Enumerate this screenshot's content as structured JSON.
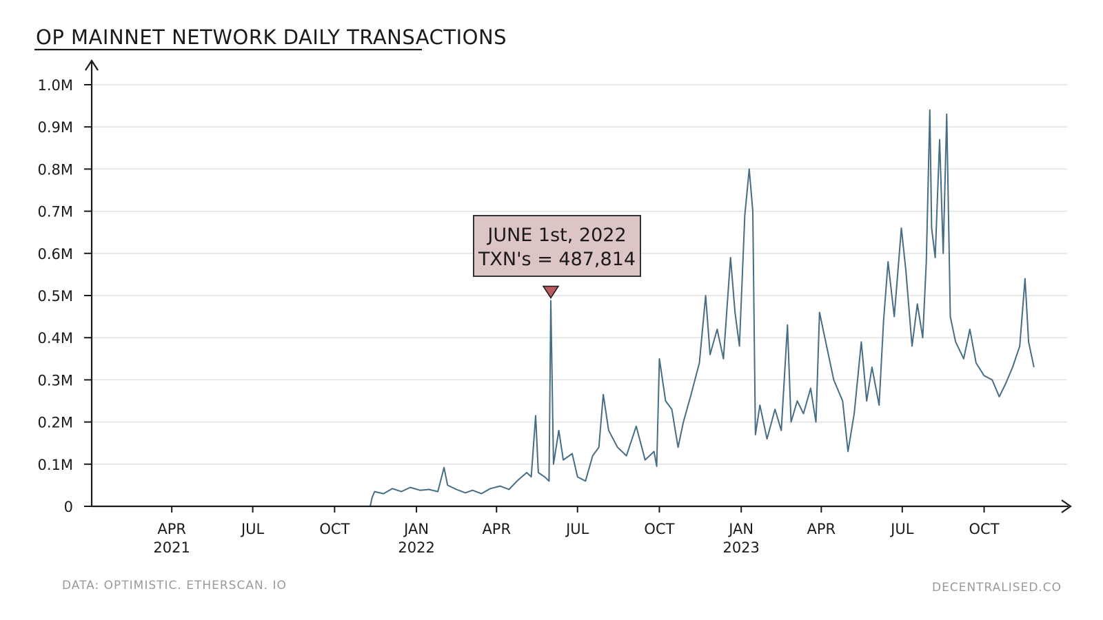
{
  "chart_data": {
    "type": "line",
    "title": "OP MAINNET NETWORK DAILY TRANSACTIONS",
    "xlabel": "",
    "ylabel": "",
    "ylim": [
      0,
      1000000
    ],
    "yticks": [
      {
        "value": 0,
        "label": "0"
      },
      {
        "value": 100000,
        "label": "0.1M"
      },
      {
        "value": 200000,
        "label": "0.2M"
      },
      {
        "value": 300000,
        "label": "0.3M"
      },
      {
        "value": 400000,
        "label": "0.4M"
      },
      {
        "value": 500000,
        "label": "0.5M"
      },
      {
        "value": 600000,
        "label": "0.6M"
      },
      {
        "value": 700000,
        "label": "0.7M"
      },
      {
        "value": 800000,
        "label": "0.8M"
      },
      {
        "value": 900000,
        "label": "0.9M"
      },
      {
        "value": 1000000,
        "label": "1.0M"
      }
    ],
    "xlim": [
      "2021-01-01",
      "2023-12-31"
    ],
    "xticks": [
      {
        "date": "2021-04-01",
        "label": "APR",
        "year": "2021"
      },
      {
        "date": "2021-07-01",
        "label": "JUL",
        "year": ""
      },
      {
        "date": "2021-10-01",
        "label": "OCT",
        "year": ""
      },
      {
        "date": "2022-01-01",
        "label": "JAN",
        "year": "2022"
      },
      {
        "date": "2022-04-01",
        "label": "APR",
        "year": ""
      },
      {
        "date": "2022-07-01",
        "label": "JUL",
        "year": ""
      },
      {
        "date": "2022-10-01",
        "label": "OCT",
        "year": ""
      },
      {
        "date": "2023-01-01",
        "label": "JAN",
        "year": "2023"
      },
      {
        "date": "2023-04-01",
        "label": "APR",
        "year": ""
      },
      {
        "date": "2023-07-01",
        "label": "JUL",
        "year": ""
      },
      {
        "date": "2023-10-01",
        "label": "OCT",
        "year": ""
      }
    ],
    "series": [
      {
        "name": "Daily transactions",
        "color": "#456d85",
        "points": [
          [
            "2021-01-01",
            0
          ],
          [
            "2021-11-10",
            0
          ],
          [
            "2021-11-12",
            20000
          ],
          [
            "2021-11-15",
            35000
          ],
          [
            "2021-11-25",
            30000
          ],
          [
            "2021-12-05",
            42000
          ],
          [
            "2021-12-15",
            35000
          ],
          [
            "2021-12-25",
            45000
          ],
          [
            "2022-01-05",
            38000
          ],
          [
            "2022-01-15",
            40000
          ],
          [
            "2022-01-25",
            35000
          ],
          [
            "2022-02-01",
            92000
          ],
          [
            "2022-02-05",
            50000
          ],
          [
            "2022-02-15",
            40000
          ],
          [
            "2022-02-25",
            32000
          ],
          [
            "2022-03-05",
            38000
          ],
          [
            "2022-03-15",
            30000
          ],
          [
            "2022-03-25",
            42000
          ],
          [
            "2022-04-05",
            48000
          ],
          [
            "2022-04-15",
            40000
          ],
          [
            "2022-04-25",
            62000
          ],
          [
            "2022-05-05",
            80000
          ],
          [
            "2022-05-10",
            70000
          ],
          [
            "2022-05-15",
            215000
          ],
          [
            "2022-05-18",
            80000
          ],
          [
            "2022-05-25",
            70000
          ],
          [
            "2022-05-30",
            60000
          ],
          [
            "2022-06-01",
            487814
          ],
          [
            "2022-06-04",
            100000
          ],
          [
            "2022-06-10",
            180000
          ],
          [
            "2022-06-15",
            110000
          ],
          [
            "2022-06-25",
            125000
          ],
          [
            "2022-07-01",
            70000
          ],
          [
            "2022-07-10",
            60000
          ],
          [
            "2022-07-18",
            120000
          ],
          [
            "2022-07-25",
            140000
          ],
          [
            "2022-07-30",
            265000
          ],
          [
            "2022-08-05",
            180000
          ],
          [
            "2022-08-15",
            140000
          ],
          [
            "2022-08-25",
            120000
          ],
          [
            "2022-09-05",
            190000
          ],
          [
            "2022-09-15",
            110000
          ],
          [
            "2022-09-25",
            130000
          ],
          [
            "2022-09-28",
            95000
          ],
          [
            "2022-10-01",
            350000
          ],
          [
            "2022-10-08",
            250000
          ],
          [
            "2022-10-15",
            230000
          ],
          [
            "2022-10-22",
            140000
          ],
          [
            "2022-10-28",
            200000
          ],
          [
            "2022-11-05",
            260000
          ],
          [
            "2022-11-15",
            340000
          ],
          [
            "2022-11-22",
            500000
          ],
          [
            "2022-11-27",
            360000
          ],
          [
            "2022-12-05",
            420000
          ],
          [
            "2022-12-12",
            350000
          ],
          [
            "2022-12-20",
            590000
          ],
          [
            "2022-12-25",
            460000
          ],
          [
            "2022-12-30",
            380000
          ],
          [
            "2023-01-05",
            690000
          ],
          [
            "2023-01-10",
            800000
          ],
          [
            "2023-01-14",
            700000
          ],
          [
            "2023-01-17",
            170000
          ],
          [
            "2023-01-22",
            240000
          ],
          [
            "2023-01-30",
            160000
          ],
          [
            "2023-02-08",
            230000
          ],
          [
            "2023-02-15",
            180000
          ],
          [
            "2023-02-22",
            430000
          ],
          [
            "2023-02-26",
            200000
          ],
          [
            "2023-03-05",
            250000
          ],
          [
            "2023-03-12",
            220000
          ],
          [
            "2023-03-20",
            280000
          ],
          [
            "2023-03-26",
            200000
          ],
          [
            "2023-03-30",
            460000
          ],
          [
            "2023-04-05",
            400000
          ],
          [
            "2023-04-15",
            300000
          ],
          [
            "2023-04-25",
            250000
          ],
          [
            "2023-05-01",
            130000
          ],
          [
            "2023-05-08",
            220000
          ],
          [
            "2023-05-16",
            390000
          ],
          [
            "2023-05-22",
            250000
          ],
          [
            "2023-05-28",
            330000
          ],
          [
            "2023-06-05",
            240000
          ],
          [
            "2023-06-10",
            440000
          ],
          [
            "2023-06-15",
            580000
          ],
          [
            "2023-06-22",
            450000
          ],
          [
            "2023-06-30",
            660000
          ],
          [
            "2023-07-05",
            560000
          ],
          [
            "2023-07-12",
            380000
          ],
          [
            "2023-07-18",
            480000
          ],
          [
            "2023-07-24",
            400000
          ],
          [
            "2023-07-28",
            580000
          ],
          [
            "2023-08-01",
            940000
          ],
          [
            "2023-08-03",
            660000
          ],
          [
            "2023-08-07",
            590000
          ],
          [
            "2023-08-12",
            870000
          ],
          [
            "2023-08-16",
            600000
          ],
          [
            "2023-08-20",
            930000
          ],
          [
            "2023-08-24",
            450000
          ],
          [
            "2023-08-30",
            390000
          ],
          [
            "2023-09-08",
            350000
          ],
          [
            "2023-09-15",
            420000
          ],
          [
            "2023-09-22",
            340000
          ],
          [
            "2023-10-01",
            310000
          ],
          [
            "2023-10-10",
            300000
          ],
          [
            "2023-10-18",
            260000
          ],
          [
            "2023-10-25",
            290000
          ],
          [
            "2023-11-02",
            330000
          ],
          [
            "2023-11-10",
            380000
          ],
          [
            "2023-11-16",
            540000
          ],
          [
            "2023-11-20",
            390000
          ],
          [
            "2023-11-26",
            330000
          ]
        ]
      }
    ],
    "annotation": {
      "date": "2022-06-01",
      "value": 487814,
      "line1": "JUNE 1st, 2022",
      "line2": "TXN's = 487,814"
    }
  },
  "footer": {
    "source": "DATA: OPTIMISTIC. ETHERSCAN. IO",
    "brand": "DECENTRALISED.CO"
  }
}
